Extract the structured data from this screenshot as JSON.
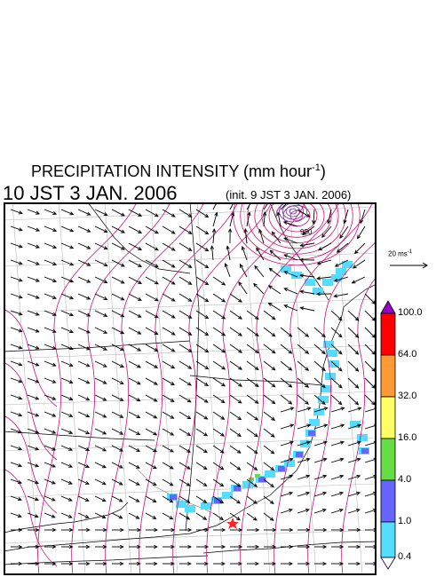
{
  "header": {
    "title_main": "PRECIPITATION INTENSITY (mm hour",
    "title_exp": "-1",
    "title_close": ")",
    "valid_time": "10 JST 3 JAN. 2006",
    "init_time": "(init. 9 JST 3 JAN. 2006)"
  },
  "reference_vector": {
    "label": "20 ms",
    "exp": "-1"
  },
  "colorbar": {
    "ticks": [
      "100.0",
      "64.0",
      "32.0",
      "16.0",
      "4.0",
      "1.0",
      "0.4"
    ],
    "colors": [
      "#9900cc",
      "#ff0000",
      "#ff9933",
      "#ffff66",
      "#66dd44",
      "#6666ff",
      "#55ddff",
      "#ffffff"
    ]
  },
  "map": {
    "contour_color": "#cc1177",
    "vector_color": "#000000",
    "star_color": "#ff2222",
    "contour_label": "980"
  }
}
